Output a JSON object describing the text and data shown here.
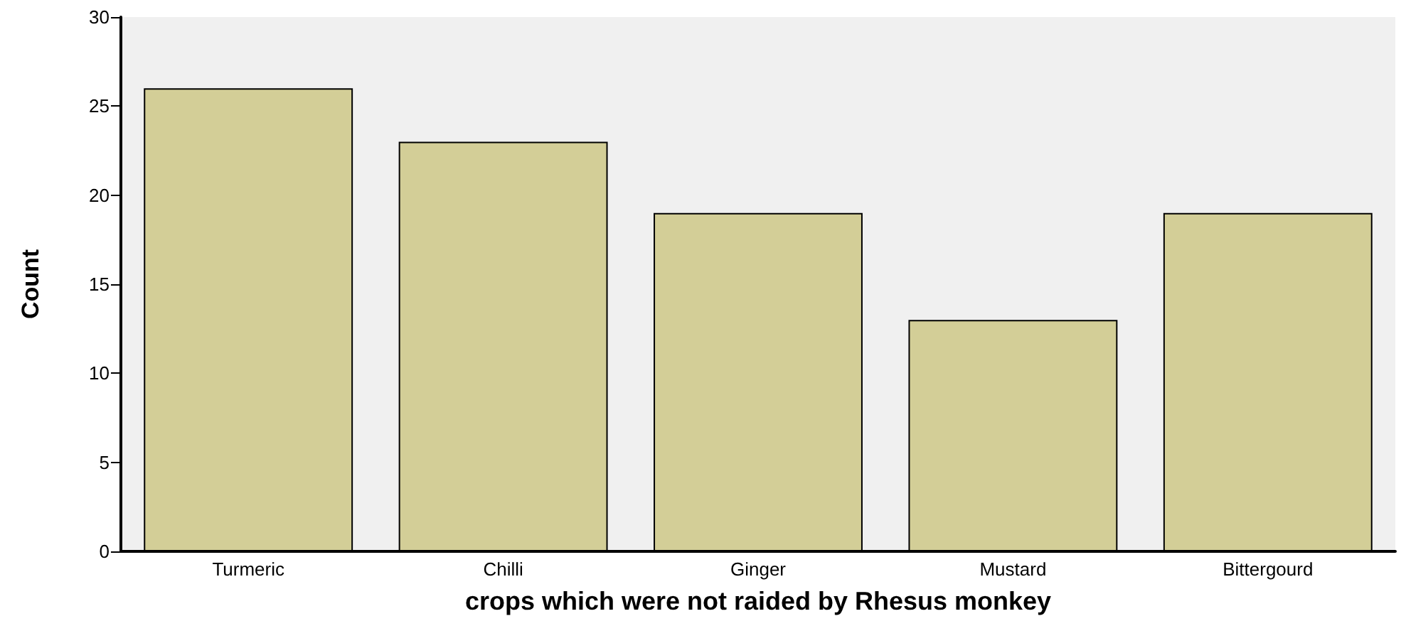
{
  "chart_data": {
    "type": "bar",
    "xlabel": "crops which were not raided by Rhesus monkey",
    "ylabel": "Count",
    "categories": [
      "Turmeric",
      "Chilli",
      "Ginger",
      "Mustard",
      "Bittergourd"
    ],
    "values": [
      26,
      23,
      19,
      13,
      19
    ],
    "color": "#d3ce97",
    "ylim": [
      0,
      30
    ],
    "yticks": [
      0,
      5,
      10,
      15,
      20,
      25,
      30
    ]
  }
}
